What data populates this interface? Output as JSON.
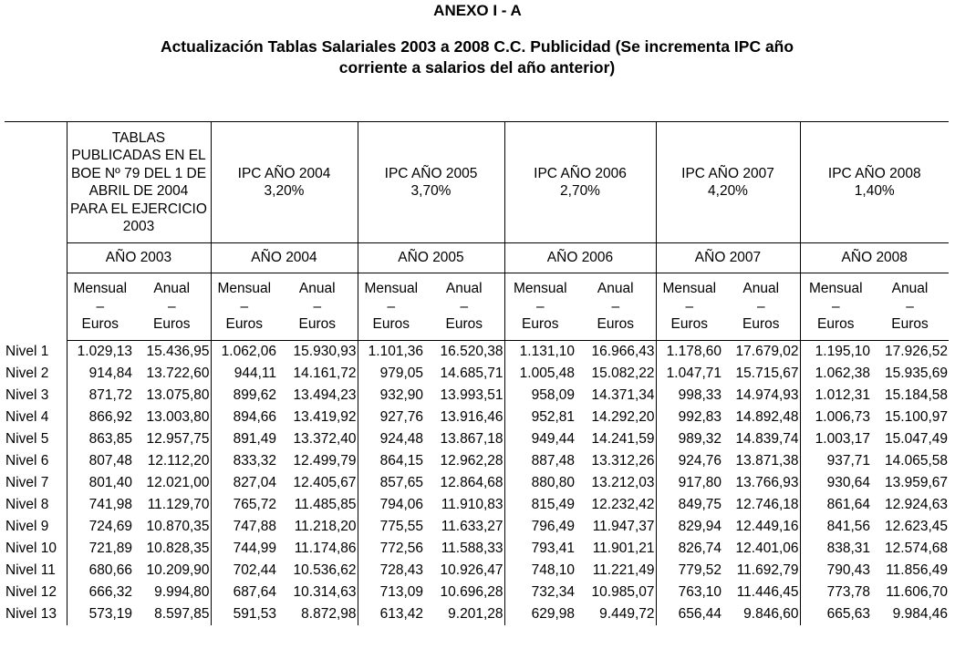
{
  "annex_title": "ANEXO I - A",
  "doc_title_line1": "Actualización Tablas Salariales 2003 a 2008 C.C. Publicidad (Se incrementa IPC año",
  "doc_title_line2": "corriente a salarios del año anterior)",
  "table": {
    "base_header_lines": [
      "TABLAS",
      "PUBLICADAS EN EL",
      "BOE Nº 79 DEL 1 DE",
      "ABRIL DE 2004",
      "PARA EL EJERCICIO",
      "2003"
    ],
    "ipc_headers": [
      {
        "label": "IPC AÑO 2004",
        "rate": "3,20%"
      },
      {
        "label": "IPC AÑO 2005",
        "rate": "3,70%"
      },
      {
        "label": "IPC AÑO 2006",
        "rate": "2,70%"
      },
      {
        "label": "IPC AÑO 2007",
        "rate": "4,20%"
      },
      {
        "label": "IPC AÑO 2008",
        "rate": "1,40%"
      }
    ],
    "year_headers": [
      "AÑO 2003",
      "AÑO 2004",
      "AÑO 2005",
      "AÑO 2006",
      "AÑO 2007",
      "AÑO 2008"
    ],
    "unit_headers": {
      "monthly": [
        "Mensual",
        "–",
        "Euros"
      ],
      "annual": [
        "Anual",
        "–",
        "Euros"
      ]
    },
    "rows": [
      {
        "level": "Nivel 1",
        "values": [
          "1.029,13",
          "15.436,95",
          "1.062,06",
          "15.930,93",
          "1.101,36",
          "16.520,38",
          "1.131,10",
          "16.966,43",
          "1.178,60",
          "17.679,02",
          "1.195,10",
          "17.926,52"
        ]
      },
      {
        "level": "Nivel 2",
        "values": [
          "914,84",
          "13.722,60",
          "944,11",
          "14.161,72",
          "979,05",
          "14.685,71",
          "1.005,48",
          "15.082,22",
          "1.047,71",
          "15.715,67",
          "1.062,38",
          "15.935,69"
        ]
      },
      {
        "level": "Nivel 3",
        "values": [
          "871,72",
          "13.075,80",
          "899,62",
          "13.494,23",
          "932,90",
          "13.993,51",
          "958,09",
          "14.371,34",
          "998,33",
          "14.974,93",
          "1.012,31",
          "15.184,58"
        ]
      },
      {
        "level": "Nivel 4",
        "values": [
          "866,92",
          "13.003,80",
          "894,66",
          "13.419,92",
          "927,76",
          "13.916,46",
          "952,81",
          "14.292,20",
          "992,83",
          "14.892,48",
          "1.006,73",
          "15.100,97"
        ]
      },
      {
        "level": "Nivel 5",
        "values": [
          "863,85",
          "12.957,75",
          "891,49",
          "13.372,40",
          "924,48",
          "13.867,18",
          "949,44",
          "14.241,59",
          "989,32",
          "14.839,74",
          "1.003,17",
          "15.047,49"
        ]
      },
      {
        "level": "Nivel 6",
        "values": [
          "807,48",
          "12.112,20",
          "833,32",
          "12.499,79",
          "864,15",
          "12.962,28",
          "887,48",
          "13.312,26",
          "924,76",
          "13.871,38",
          "937,71",
          "14.065,58"
        ]
      },
      {
        "level": "Nivel 7",
        "values": [
          "801,40",
          "12.021,00",
          "827,04",
          "12.405,67",
          "857,65",
          "12.864,68",
          "880,80",
          "13.212,03",
          "917,80",
          "13.766,93",
          "930,64",
          "13.959,67"
        ]
      },
      {
        "level": "Nivel 8",
        "values": [
          "741,98",
          "11.129,70",
          "765,72",
          "11.485,85",
          "794,06",
          "11.910,83",
          "815,49",
          "12.232,42",
          "849,75",
          "12.746,18",
          "861,64",
          "12.924,63"
        ]
      },
      {
        "level": "Nivel 9",
        "values": [
          "724,69",
          "10.870,35",
          "747,88",
          "11.218,20",
          "775,55",
          "11.633,27",
          "796,49",
          "11.947,37",
          "829,94",
          "12.449,16",
          "841,56",
          "12.623,45"
        ]
      },
      {
        "level": "Nivel 10",
        "values": [
          "721,89",
          "10.828,35",
          "744,99",
          "11.174,86",
          "772,56",
          "11.588,33",
          "793,41",
          "11.901,21",
          "826,74",
          "12.401,06",
          "838,31",
          "12.574,68"
        ]
      },
      {
        "level": "Nivel 11",
        "values": [
          "680,66",
          "10.209,90",
          "702,44",
          "10.536,62",
          "728,43",
          "10.926,47",
          "748,10",
          "11.221,49",
          "779,52",
          "11.692,79",
          "790,43",
          "11.856,49"
        ]
      },
      {
        "level": "Nivel 12",
        "values": [
          "666,32",
          "9.994,80",
          "687,64",
          "10.314,63",
          "713,09",
          "10.696,28",
          "732,34",
          "10.985,07",
          "763,10",
          "11.446,45",
          "773,78",
          "11.606,70"
        ]
      },
      {
        "level": "Nivel 13",
        "values": [
          "573,19",
          "8.597,85",
          "591,53",
          "8.872,98",
          "613,42",
          "9.201,28",
          "629,98",
          "9.449,72",
          "656,44",
          "9.846,60",
          "665,63",
          "9.984,46"
        ]
      }
    ]
  }
}
